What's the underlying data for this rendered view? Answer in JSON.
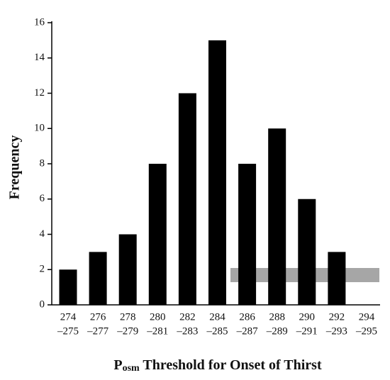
{
  "chart_data": {
    "type": "bar",
    "x_label": {
      "main": "P",
      "subscript": "osm",
      "rest": " Threshold for Onset of Thirst"
    },
    "y_label": "Frequency",
    "categories": [
      [
        "274",
        "–275"
      ],
      [
        "276",
        "–277"
      ],
      [
        "278",
        "–279"
      ],
      [
        "280",
        "–281"
      ],
      [
        "282",
        "–283"
      ],
      [
        "284",
        "–285"
      ],
      [
        "286",
        "–287"
      ],
      [
        "288",
        "–289"
      ],
      [
        "290",
        "–291"
      ],
      [
        "292",
        "–293"
      ],
      [
        "294",
        "–295"
      ]
    ],
    "values": [
      2,
      3,
      4,
      8,
      12,
      15,
      8,
      10,
      6,
      3,
      0
    ],
    "color": "#000000",
    "ylim": [
      0,
      16
    ],
    "yticks": [
      0,
      2,
      4,
      6,
      8,
      10,
      12,
      14,
      16
    ]
  }
}
